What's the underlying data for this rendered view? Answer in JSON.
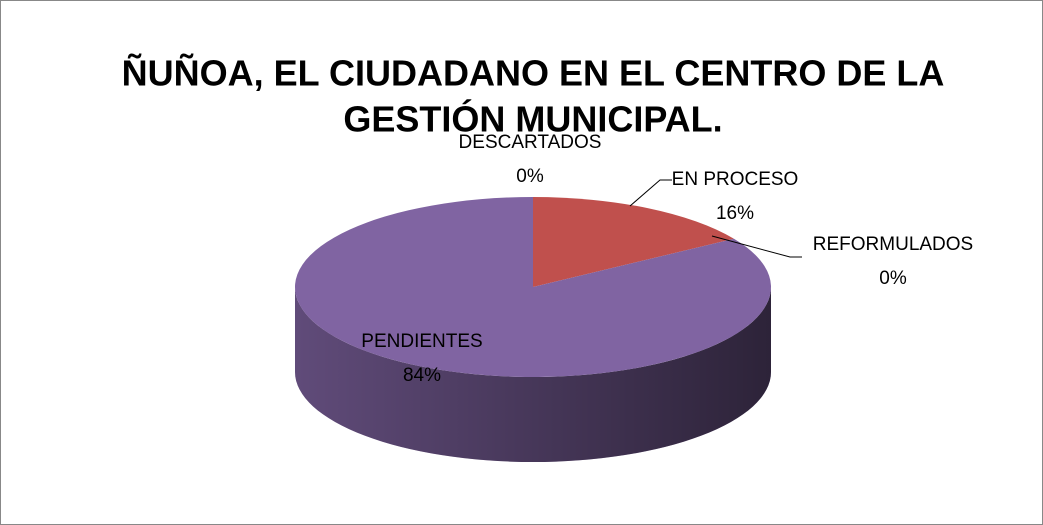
{
  "chart_data": {
    "type": "pie3d",
    "title": [
      "ÑUÑOA, EL CIUDADANO EN EL CENTRO DE LA",
      "GESTIÓN MUNICIPAL."
    ],
    "categories": [
      "DESCARTADOS",
      "EN PROCESO",
      "REFORMULADOS",
      "PENDIENTES"
    ],
    "values": [
      0,
      16,
      0,
      84
    ],
    "value_labels": [
      "0%",
      "16%",
      "0%",
      "84%"
    ],
    "colors": [
      "#4f81bd",
      "#c0504d",
      "#9bbb59",
      "#8064a2"
    ]
  }
}
